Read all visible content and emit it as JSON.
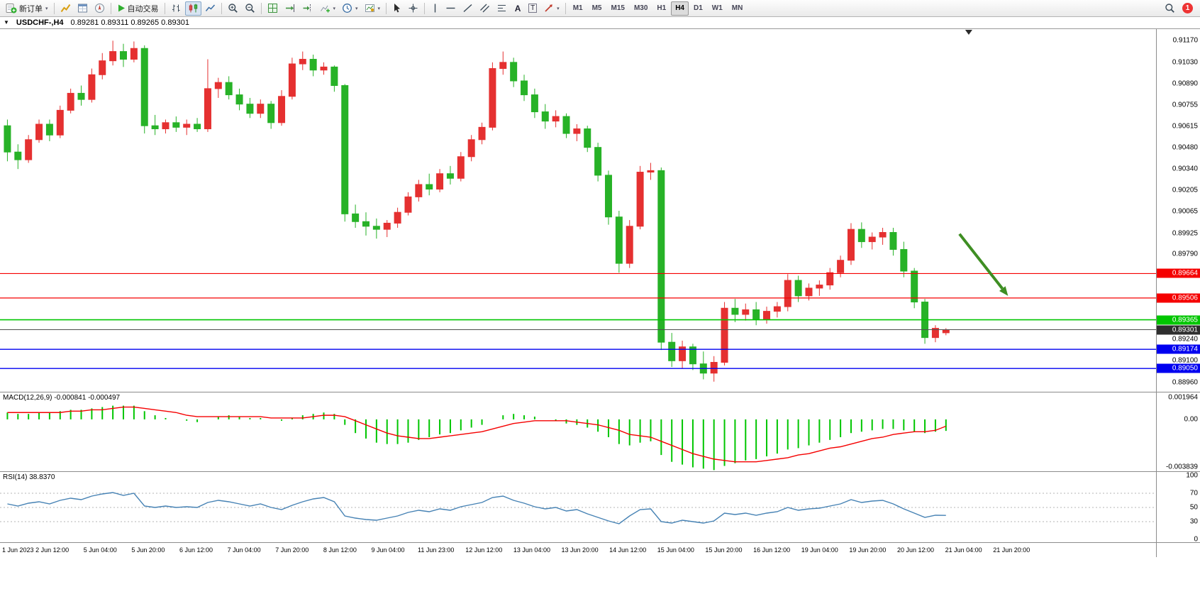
{
  "toolbar": {
    "new_order": "新订单",
    "auto_trading": "自动交易",
    "timeframes": [
      "M1",
      "M5",
      "M15",
      "M30",
      "H1",
      "H4",
      "D1",
      "W1",
      "MN"
    ],
    "active_timeframe": "H4",
    "notification_badge": "1",
    "icons": [
      "new-order-icon",
      "market-watch-icon",
      "data-window-icon",
      "navigator-icon",
      "auto-trading-icon",
      "bar-chart-icon",
      "candlestick-chart-icon",
      "line-chart-icon",
      "zoom-in-icon",
      "zoom-out-icon",
      "tile-windows-icon",
      "auto-scroll-icon",
      "chart-shift-icon",
      "indicators-icon",
      "periods-icon",
      "templates-icon",
      "cursor-icon",
      "crosshair-icon",
      "vertical-line-icon",
      "horizontal-line-icon",
      "trendline-icon",
      "channel-icon",
      "fibonacci-icon",
      "text-icon",
      "label-icon",
      "arrows-icon",
      "search-icon"
    ]
  },
  "chart_header": {
    "symbol": "USDCHF-,H4",
    "ohlc": "0.89281 0.89311 0.89265 0.89301",
    "open": "0.89281",
    "high": "0.89311",
    "low": "0.89265",
    "close": "0.89301"
  },
  "indicators": {
    "macd_label": "MACD(12,26,9) -0.000841 -0.000497",
    "rsi_label": "RSI(14) 38.8370"
  },
  "colors": {
    "bull": "#e53030",
    "bear": "#27b227",
    "macd_bar": "#00c600",
    "macd_signal": "#f50000",
    "rsi_line": "#4682b4",
    "level_dash": "#b4b4b4"
  },
  "time_axis": {
    "labels": [
      "1 Jun 2023",
      "2 Jun 12:00",
      "5 Jun 04:00",
      "5 Jun 20:00",
      "6 Jun 12:00",
      "7 Jun 04:00",
      "7 Jun 20:00",
      "8 Jun 12:00",
      "9 Jun 04:00",
      "11 Jun 23:00",
      "12 Jun 12:00",
      "13 Jun 04:00",
      "13 Jun 20:00",
      "14 Jun 12:00",
      "15 Jun 04:00",
      "15 Jun 20:00",
      "16 Jun 12:00",
      "19 Jun 04:00",
      "19 Jun 20:00",
      "20 Jun 12:00",
      "21 Jun 04:00",
      "21 Jun 20:00"
    ]
  },
  "chart_data": [
    {
      "type": "candlestick",
      "symbol": "USDCHF-",
      "timeframe": "H4",
      "price_range": [
        0.88895,
        0.91245
      ],
      "axis_ticks": [
        "0.91170",
        "0.91030",
        "0.90890",
        "0.90755",
        "0.90615",
        "0.90480",
        "0.90340",
        "0.90205",
        "0.90065",
        "0.89925",
        "0.89790",
        "0.89240",
        "0.89100",
        "0.88960"
      ],
      "lines": [
        {
          "price": 0.89664,
          "label": "0.89664",
          "color": "#f50000",
          "label_bg": "#f50000",
          "width": 1.2
        },
        {
          "price": 0.89506,
          "label": "0.89506",
          "color": "#f50000",
          "label_bg": "#f50000",
          "width": 1.2
        },
        {
          "price": 0.89365,
          "label": "0.89365",
          "color": "#00c600",
          "label_bg": "#00c600",
          "width": 1.6
        },
        {
          "price": 0.89301,
          "label": "0.89301",
          "color": "#4d4d4d",
          "label_bg": "#2e2e2e",
          "width": 1
        },
        {
          "price": 0.89174,
          "label": "0.89174",
          "color": "#0000f0",
          "label_bg": "#0000f0",
          "width": 1.4
        },
        {
          "price": 0.8905,
          "label": "0.89050",
          "color": "#0000f0",
          "label_bg": "#0000f0",
          "width": 1.4
        }
      ],
      "annotation_arrow": {
        "x1_fraction": 0.83,
        "price1": 0.8992,
        "x2_fraction": 0.872,
        "price2": 0.8952,
        "color": "#3e8e23"
      },
      "layout": {
        "candle_area_fraction": 0.821,
        "shift_marker_fraction": 0.838,
        "time_label_end_fraction": 0.875
      },
      "candles": [
        [
          0.9062,
          0.9066,
          0.9039,
          0.9045
        ],
        [
          0.9045,
          0.905,
          0.9034,
          0.904
        ],
        [
          0.904,
          0.9056,
          0.9038,
          0.9053
        ],
        [
          0.9053,
          0.9066,
          0.9051,
          0.9063
        ],
        [
          0.9063,
          0.9066,
          0.9052,
          0.9056
        ],
        [
          0.9056,
          0.9075,
          0.9054,
          0.9072
        ],
        [
          0.9072,
          0.9086,
          0.907,
          0.9083
        ],
        [
          0.9083,
          0.9088,
          0.9075,
          0.9079
        ],
        [
          0.9079,
          0.9099,
          0.9077,
          0.9095
        ],
        [
          0.9095,
          0.9109,
          0.9092,
          0.9104
        ],
        [
          0.9104,
          0.9117,
          0.9101,
          0.911
        ],
        [
          0.911,
          0.9115,
          0.91,
          0.9105
        ],
        [
          0.9105,
          0.91165,
          0.9103,
          0.9112
        ],
        [
          0.9112,
          0.9114,
          0.9057,
          0.9062
        ],
        [
          0.9062,
          0.9069,
          0.9056,
          0.906
        ],
        [
          0.906,
          0.9066,
          0.9057,
          0.9064
        ],
        [
          0.9064,
          0.9068,
          0.9058,
          0.9061
        ],
        [
          0.9061,
          0.9066,
          0.9056,
          0.9063
        ],
        [
          0.9063,
          0.9067,
          0.9058,
          0.906
        ],
        [
          0.906,
          0.9105,
          0.9058,
          0.9086
        ],
        [
          0.9086,
          0.9093,
          0.908,
          0.909
        ],
        [
          0.909,
          0.9094,
          0.9079,
          0.9082
        ],
        [
          0.9082,
          0.9086,
          0.9072,
          0.9076
        ],
        [
          0.9076,
          0.908,
          0.9067,
          0.907
        ],
        [
          0.907,
          0.9079,
          0.9067,
          0.9076
        ],
        [
          0.9076,
          0.9078,
          0.906,
          0.9064
        ],
        [
          0.9064,
          0.9085,
          0.9062,
          0.9081
        ],
        [
          0.9081,
          0.9106,
          0.9079,
          0.9102
        ],
        [
          0.9102,
          0.911,
          0.9098,
          0.9105
        ],
        [
          0.9105,
          0.9108,
          0.9094,
          0.9098
        ],
        [
          0.9098,
          0.9103,
          0.9095,
          0.91
        ],
        [
          0.91,
          0.9101,
          0.9084,
          0.9088
        ],
        [
          0.9088,
          0.9089,
          0.9,
          0.9005
        ],
        [
          0.9005,
          0.9011,
          0.8996,
          0.9
        ],
        [
          0.9,
          0.9006,
          0.8991,
          0.8997
        ],
        [
          0.8997,
          0.9002,
          0.8989,
          0.8995
        ],
        [
          0.8995,
          0.9001,
          0.899,
          0.8999
        ],
        [
          0.8999,
          0.9009,
          0.8996,
          0.9006
        ],
        [
          0.9006,
          0.9019,
          0.9004,
          0.9016
        ],
        [
          0.9016,
          0.9027,
          0.9013,
          0.9024
        ],
        [
          0.9024,
          0.9031,
          0.9017,
          0.9021
        ],
        [
          0.9021,
          0.9034,
          0.9019,
          0.9031
        ],
        [
          0.9031,
          0.9036,
          0.9024,
          0.9028
        ],
        [
          0.9028,
          0.9045,
          0.9026,
          0.9042
        ],
        [
          0.9042,
          0.9056,
          0.9039,
          0.9053
        ],
        [
          0.9053,
          0.9064,
          0.905,
          0.9061
        ],
        [
          0.9061,
          0.9103,
          0.9059,
          0.9099
        ],
        [
          0.9099,
          0.911,
          0.9095,
          0.9103
        ],
        [
          0.9103,
          0.9106,
          0.9087,
          0.9091
        ],
        [
          0.9091,
          0.9095,
          0.9078,
          0.9082
        ],
        [
          0.9082,
          0.9086,
          0.9067,
          0.9071
        ],
        [
          0.9071,
          0.9076,
          0.906,
          0.9065
        ],
        [
          0.9065,
          0.9072,
          0.9061,
          0.9068
        ],
        [
          0.9068,
          0.907,
          0.9054,
          0.9057
        ],
        [
          0.9057,
          0.9063,
          0.9052,
          0.906
        ],
        [
          0.906,
          0.9062,
          0.9045,
          0.9048
        ],
        [
          0.9048,
          0.9051,
          0.9026,
          0.903
        ],
        [
          0.903,
          0.9033,
          0.8998,
          0.9003
        ],
        [
          0.9003,
          0.9007,
          0.8967,
          0.8973
        ],
        [
          0.8973,
          0.9001,
          0.897,
          0.8997
        ],
        [
          0.8997,
          0.9036,
          0.8995,
          0.9032
        ],
        [
          0.9032,
          0.9038,
          0.9027,
          0.9033
        ],
        [
          0.9033,
          0.9035,
          0.8917,
          0.8922
        ],
        [
          0.8922,
          0.8928,
          0.8906,
          0.891
        ],
        [
          0.891,
          0.8923,
          0.8905,
          0.8919
        ],
        [
          0.8919,
          0.8921,
          0.8904,
          0.8908
        ],
        [
          0.8908,
          0.8916,
          0.8898,
          0.8902
        ],
        [
          0.8902,
          0.8913,
          0.88965,
          0.8909
        ],
        [
          0.8909,
          0.8948,
          0.8907,
          0.8944
        ],
        [
          0.8944,
          0.895,
          0.8935,
          0.894
        ],
        [
          0.894,
          0.8947,
          0.8936,
          0.8943
        ],
        [
          0.8943,
          0.8948,
          0.8933,
          0.8937
        ],
        [
          0.8937,
          0.8945,
          0.8934,
          0.8942
        ],
        [
          0.8942,
          0.8948,
          0.8938,
          0.8945
        ],
        [
          0.8945,
          0.8966,
          0.8942,
          0.8962
        ],
        [
          0.8962,
          0.8965,
          0.8948,
          0.8952
        ],
        [
          0.8952,
          0.896,
          0.8949,
          0.8957
        ],
        [
          0.8957,
          0.8962,
          0.8952,
          0.8959
        ],
        [
          0.8959,
          0.897,
          0.8956,
          0.8967
        ],
        [
          0.8967,
          0.8978,
          0.8964,
          0.8975
        ],
        [
          0.8975,
          0.8999,
          0.8972,
          0.8995
        ],
        [
          0.8995,
          0.89995,
          0.8983,
          0.8987
        ],
        [
          0.8987,
          0.8993,
          0.8982,
          0.899
        ],
        [
          0.899,
          0.8996,
          0.8985,
          0.8993
        ],
        [
          0.8993,
          0.8996,
          0.8978,
          0.8982
        ],
        [
          0.8982,
          0.8987,
          0.8964,
          0.8968
        ],
        [
          0.8968,
          0.897,
          0.8944,
          0.8948
        ],
        [
          0.8948,
          0.895,
          0.8921,
          0.8925
        ],
        [
          0.8925,
          0.8933,
          0.8922,
          0.8931
        ],
        [
          0.89281,
          0.89311,
          0.89265,
          0.89301
        ]
      ]
    },
    {
      "type": "macd",
      "name": "MACD(12,26,9)",
      "macd_value": -0.000841,
      "signal_value": -0.000497,
      "range": [
        0.001964,
        -0.003839
      ],
      "axis_labels": [
        "0.001964",
        "0.00",
        "-0.003839"
      ],
      "values": [
        0.0005,
        0.0004,
        0.0004,
        0.0005,
        0.0005,
        0.0006,
        0.0007,
        0.0007,
        0.0008,
        0.0009,
        0.001,
        0.001,
        0.001,
        0.0006,
        0.0003,
        0.0001,
        0.0,
        -0.0001,
        -0.0002,
        0.0,
        0.0002,
        0.0003,
        0.0002,
        0.0001,
        0.0001,
        0.0,
        -0.0001,
        0.0001,
        0.0003,
        0.0004,
        0.0005,
        0.0004,
        -0.0004,
        -0.001,
        -0.0014,
        -0.0017,
        -0.0018,
        -0.0018,
        -0.0017,
        -0.0015,
        -0.0013,
        -0.0011,
        -0.001,
        -0.0008,
        -0.0006,
        -0.0004,
        0.0,
        0.0003,
        0.0004,
        0.0003,
        0.0002,
        0.0,
        -0.0001,
        -0.0003,
        -0.0004,
        -0.0006,
        -0.0009,
        -0.0013,
        -0.0018,
        -0.0019,
        -0.0017,
        -0.0016,
        -0.0026,
        -0.0031,
        -0.0033,
        -0.0035,
        -0.0036,
        -0.0037,
        -0.0034,
        -0.0032,
        -0.003,
        -0.0029,
        -0.0027,
        -0.0025,
        -0.0022,
        -0.0021,
        -0.0019,
        -0.0017,
        -0.0015,
        -0.0013,
        -0.001,
        -0.0009,
        -0.0008,
        -0.0007,
        -0.0007,
        -0.0008,
        -0.0009,
        -0.001,
        -0.0009,
        -0.000841
      ],
      "signal": [
        0.0005,
        0.0005,
        0.0005,
        0.0005,
        0.0005,
        0.0005,
        0.0006,
        0.0006,
        0.0007,
        0.0007,
        0.0008,
        0.0009,
        0.0009,
        0.0008,
        0.0007,
        0.0006,
        0.0005,
        0.0003,
        0.0002,
        0.0002,
        0.0002,
        0.0002,
        0.0002,
        0.0002,
        0.0002,
        0.0001,
        0.0001,
        0.0001,
        0.0001,
        0.0002,
        0.0003,
        0.0003,
        0.0002,
        -0.0001,
        -0.0004,
        -0.0007,
        -0.001,
        -0.0012,
        -0.0013,
        -0.0014,
        -0.0014,
        -0.0013,
        -0.0012,
        -0.0011,
        -0.001,
        -0.0009,
        -0.0007,
        -0.0005,
        -0.0003,
        -0.0002,
        -0.0001,
        -0.0001,
        -0.0001,
        -0.0001,
        -0.0002,
        -0.0003,
        -0.0004,
        -0.0006,
        -0.0008,
        -0.0011,
        -0.0012,
        -0.0013,
        -0.0016,
        -0.0019,
        -0.0022,
        -0.0025,
        -0.0027,
        -0.0029,
        -0.003,
        -0.0031,
        -0.0031,
        -0.0031,
        -0.003,
        -0.0029,
        -0.0028,
        -0.0026,
        -0.0025,
        -0.0023,
        -0.0021,
        -0.002,
        -0.0018,
        -0.0016,
        -0.0014,
        -0.0013,
        -0.0011,
        -0.001,
        -0.0009,
        -0.0009,
        -0.0008,
        -0.000497
      ]
    },
    {
      "type": "line",
      "name": "RSI(14)",
      "current": 38.837,
      "range": [
        0,
        100
      ],
      "levels": [
        70,
        50,
        30
      ],
      "axis_labels": [
        "100",
        "70",
        "50",
        "30",
        "0"
      ],
      "values": [
        55,
        52,
        56,
        58,
        55,
        60,
        63,
        61,
        66,
        69,
        71,
        67,
        70,
        52,
        50,
        52,
        50,
        51,
        50,
        57,
        60,
        58,
        55,
        52,
        55,
        50,
        47,
        53,
        58,
        62,
        64,
        58,
        38,
        35,
        33,
        32,
        35,
        38,
        43,
        46,
        44,
        48,
        46,
        51,
        54,
        57,
        64,
        66,
        60,
        56,
        51,
        48,
        50,
        45,
        47,
        41,
        36,
        31,
        27,
        38,
        47,
        48,
        30,
        28,
        32,
        30,
        28,
        31,
        42,
        40,
        42,
        39,
        42,
        44,
        50,
        46,
        48,
        49,
        52,
        55,
        61,
        57,
        59,
        60,
        55,
        48,
        42,
        36,
        39,
        38.837
      ]
    }
  ]
}
